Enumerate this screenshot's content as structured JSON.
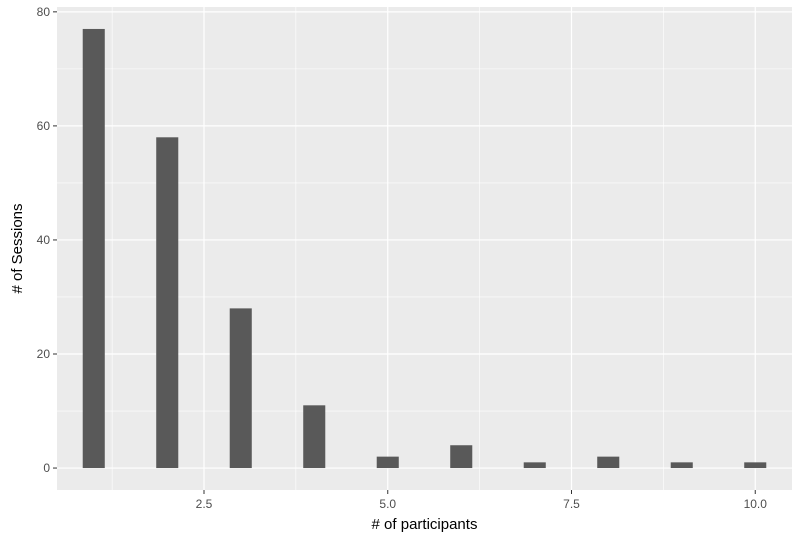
{
  "chart_data": {
    "type": "bar",
    "xlabel": "# of participants",
    "ylabel": "# of Sessions",
    "x": [
      1,
      2,
      3,
      4,
      5,
      6,
      7,
      8,
      9,
      10
    ],
    "values": [
      77,
      58,
      28,
      11,
      2,
      4,
      1,
      2,
      1,
      1
    ],
    "xlim": [
      0.5,
      10.5
    ],
    "ylim": [
      -3.85,
      80.85
    ],
    "x_ticks": [
      2.5,
      5.0,
      7.5,
      10.0
    ],
    "x_tick_labels": [
      "2.5",
      "5.0",
      "7.5",
      "10.0"
    ],
    "y_ticks": [
      0,
      20,
      40,
      60,
      80
    ],
    "y_tick_labels": [
      "0",
      "20",
      "40",
      "60",
      "80"
    ],
    "grid": true,
    "colors": {
      "panel_background": "#ebebeb",
      "grid_major": "#ffffff",
      "bar_fill": "#595959"
    }
  }
}
